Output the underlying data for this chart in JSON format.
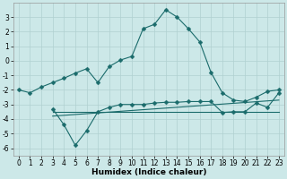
{
  "xlabel": "Humidex (Indice chaleur)",
  "xlim": [
    -0.5,
    23.5
  ],
  "ylim": [
    -6.5,
    4.0
  ],
  "xticks": [
    0,
    1,
    2,
    3,
    4,
    5,
    6,
    7,
    8,
    9,
    10,
    11,
    12,
    13,
    14,
    15,
    16,
    17,
    18,
    19,
    20,
    21,
    22,
    23
  ],
  "yticks": [
    -6,
    -5,
    -4,
    -3,
    -2,
    -1,
    0,
    1,
    2,
    3
  ],
  "bg_color": "#cce8e8",
  "grid_color": "#b0d0d0",
  "line_color": "#1a6b6b",
  "line1_x": [
    0,
    1,
    2,
    3,
    4,
    5,
    6,
    7,
    8,
    9,
    10,
    11,
    12,
    13,
    14,
    15,
    16,
    17,
    18,
    19,
    20,
    21,
    22,
    23
  ],
  "line1_y": [
    -2.0,
    -2.2,
    -1.8,
    -1.5,
    -1.2,
    -0.85,
    -0.55,
    -1.5,
    -0.4,
    0.05,
    0.3,
    2.2,
    2.5,
    3.5,
    3.0,
    2.2,
    1.3,
    -0.8,
    -2.2,
    -2.7,
    -2.8,
    -2.5,
    -2.1,
    -2.0
  ],
  "line2_x": [
    3,
    4,
    5,
    6,
    7,
    8,
    9,
    10,
    11,
    12,
    13,
    14,
    15,
    16,
    17,
    18,
    19,
    20,
    21,
    22,
    23
  ],
  "line2_y": [
    -3.3,
    -4.4,
    -5.8,
    -4.8,
    -3.5,
    -3.2,
    -3.0,
    -3.0,
    -3.0,
    -2.9,
    -2.85,
    -2.85,
    -2.8,
    -2.8,
    -2.8,
    -3.55,
    -3.5,
    -3.5,
    -2.9,
    -3.2,
    -2.2
  ],
  "line3_x": [
    3,
    23
  ],
  "line3_y": [
    -3.5,
    -3.5
  ],
  "line4_x": [
    3,
    23
  ],
  "line4_y": [
    -3.8,
    -2.7
  ],
  "marker_size": 2.5,
  "line_width": 0.8,
  "tick_fontsize": 5.5,
  "label_fontsize": 6.5
}
